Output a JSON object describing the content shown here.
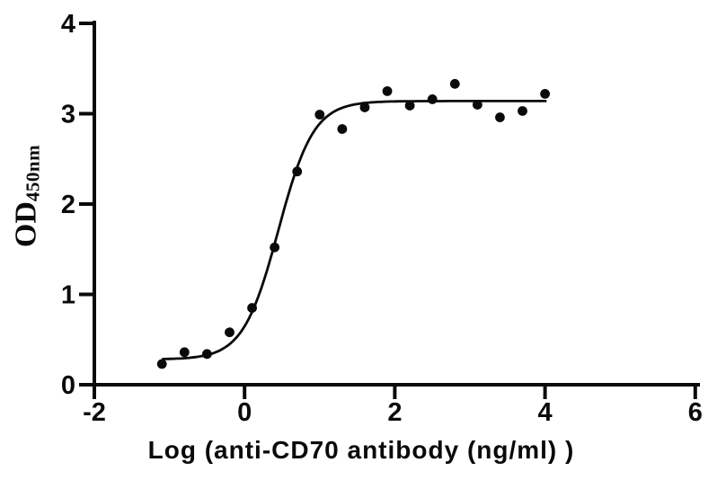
{
  "figure": {
    "background": "#ffffff",
    "axis_color": "#0a0a0a",
    "point_color": "#0a0a0a",
    "curve_color": "#0a0a0a"
  },
  "chart_data": {
    "type": "scatter",
    "title": "",
    "xlabel": "Log (anti-CD70 antibody (ng/ml) )",
    "ylabel_main": "OD",
    "ylabel_sub": "450nm",
    "xlim": [
      -2,
      6
    ],
    "ylim": [
      0,
      4
    ],
    "xticks": [
      -2,
      0,
      2,
      4,
      6
    ],
    "yticks": [
      0,
      1,
      2,
      3,
      4
    ],
    "grid": false,
    "points": {
      "x": [
        -1.1,
        -0.8,
        -0.5,
        -0.2,
        0.1,
        0.4,
        0.7,
        1.0,
        1.3,
        1.6,
        1.9,
        2.2,
        2.5,
        2.8,
        3.1,
        3.4,
        3.7,
        4.0
      ],
      "y": [
        0.23,
        0.36,
        0.34,
        0.58,
        0.85,
        1.52,
        2.36,
        2.99,
        2.83,
        3.07,
        3.25,
        3.09,
        3.16,
        3.33,
        3.1,
        2.96,
        3.03,
        3.22
      ]
    },
    "fit_curve": {
      "model": "4PL-sigmoid",
      "bottom": 0.28,
      "top": 3.14,
      "logEC50": 0.45,
      "hill": 1.85,
      "x_start": -1.1,
      "x_end": 4.02
    }
  }
}
